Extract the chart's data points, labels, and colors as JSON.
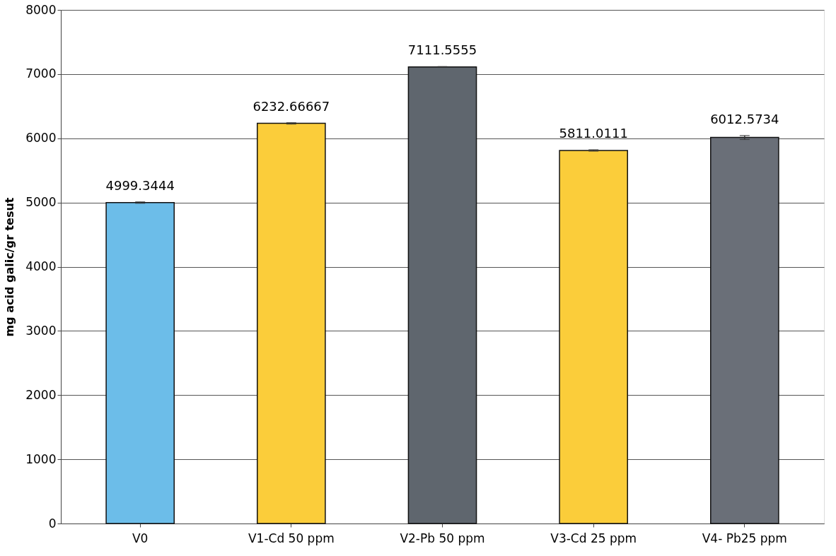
{
  "chart_data": {
    "type": "bar",
    "ylabel": "mg acid galic/gr tesut",
    "categories": [
      "V0",
      "V1-Cd 50 ppm",
      "V2-Pb 50 ppm",
      "V3-Cd 25 ppm",
      "V4- Pb25 ppm"
    ],
    "values": [
      4999.3444,
      6232.66667,
      7111.5555,
      5811.0111,
      6012.5734
    ],
    "colors": [
      "#6cbde9",
      "#fbcd3a",
      "#5f666e",
      "#fbcd3a",
      "#6a6f78"
    ],
    "errors": [
      10,
      10,
      5,
      10,
      30
    ],
    "ylim": [
      0,
      8000
    ],
    "yticks": [
      0,
      1000,
      2000,
      3000,
      4000,
      5000,
      6000,
      7000,
      8000
    ],
    "grid": "y",
    "data_labels": true
  }
}
